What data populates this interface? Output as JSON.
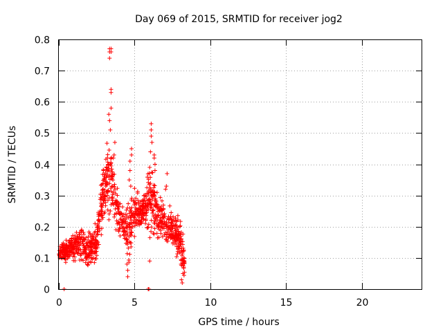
{
  "chart_data": {
    "type": "scatter",
    "title": "Day 069 of 2015, SRMTID for receiver jog2",
    "xlabel": "GPS time / hours",
    "ylabel": "SRMTID / TECUs",
    "xlim": [
      0,
      24
    ],
    "ylim": [
      0,
      0.8
    ],
    "xticks": [
      0,
      5,
      10,
      15,
      20
    ],
    "xtick_labels": [
      "0",
      "5",
      "10",
      "15",
      "20"
    ],
    "yticks": [
      0,
      0.1,
      0.2,
      0.3,
      0.4,
      0.5,
      0.6,
      0.7,
      0.8
    ],
    "ytick_labels": [
      "0",
      "0.1",
      "0.2",
      "0.3",
      "0.4",
      "0.5",
      "0.6",
      "0.7",
      "0.8"
    ],
    "grid": true,
    "marker": "+",
    "color": "#ff0000",
    "series": [
      {
        "name": "SRMTID",
        "x_range": [
          0,
          8.3
        ],
        "envelope": [
          {
            "t": 0.0,
            "lo": 0.08,
            "hi": 0.15
          },
          {
            "t": 0.5,
            "lo": 0.08,
            "hi": 0.17
          },
          {
            "t": 1.0,
            "lo": 0.07,
            "hi": 0.2
          },
          {
            "t": 1.5,
            "lo": 0.06,
            "hi": 0.22
          },
          {
            "t": 2.0,
            "lo": 0.06,
            "hi": 0.2
          },
          {
            "t": 2.5,
            "lo": 0.08,
            "hi": 0.22
          },
          {
            "t": 2.8,
            "lo": 0.15,
            "hi": 0.38
          },
          {
            "t": 3.2,
            "lo": 0.18,
            "hi": 0.55
          },
          {
            "t": 3.6,
            "lo": 0.18,
            "hi": 0.45
          },
          {
            "t": 4.0,
            "lo": 0.15,
            "hi": 0.3
          },
          {
            "t": 4.6,
            "lo": 0.06,
            "hi": 0.3
          },
          {
            "t": 5.0,
            "lo": 0.15,
            "hi": 0.35
          },
          {
            "t": 5.5,
            "lo": 0.18,
            "hi": 0.3
          },
          {
            "t": 6.0,
            "lo": 0.15,
            "hi": 0.45
          },
          {
            "t": 6.5,
            "lo": 0.12,
            "hi": 0.35
          },
          {
            "t": 7.0,
            "lo": 0.12,
            "hi": 0.3
          },
          {
            "t": 7.5,
            "lo": 0.12,
            "hi": 0.27
          },
          {
            "t": 8.0,
            "lo": 0.05,
            "hi": 0.27
          },
          {
            "t": 8.3,
            "lo": 0.03,
            "hi": 0.15
          }
        ],
        "extra_points": [
          [
            3.35,
            0.77
          ],
          [
            3.35,
            0.76
          ],
          [
            3.35,
            0.74
          ],
          [
            3.45,
            0.77
          ],
          [
            3.45,
            0.76
          ],
          [
            3.45,
            0.64
          ],
          [
            3.45,
            0.63
          ],
          [
            3.45,
            0.58
          ],
          [
            3.3,
            0.56
          ],
          [
            3.35,
            0.54
          ],
          [
            3.4,
            0.51
          ],
          [
            3.7,
            0.47
          ],
          [
            3.65,
            0.43
          ],
          [
            3.6,
            0.42
          ],
          [
            3.4,
            0.4
          ],
          [
            3.3,
            0.38
          ],
          [
            3.5,
            0.36
          ],
          [
            3.2,
            0.34
          ],
          [
            3.1,
            0.33
          ],
          [
            3.0,
            0.35
          ],
          [
            2.95,
            0.38
          ],
          [
            2.9,
            0.32
          ],
          [
            3.55,
            0.33
          ],
          [
            3.2,
            0.3
          ],
          [
            4.8,
            0.45
          ],
          [
            4.8,
            0.43
          ],
          [
            4.7,
            0.41
          ],
          [
            4.7,
            0.38
          ],
          [
            4.65,
            0.35
          ],
          [
            4.75,
            0.33
          ],
          [
            4.55,
            0.04
          ],
          [
            4.55,
            0.06
          ],
          [
            4.5,
            0.08
          ],
          [
            6.1,
            0.53
          ],
          [
            6.1,
            0.51
          ],
          [
            6.1,
            0.49
          ],
          [
            6.15,
            0.47
          ],
          [
            6.3,
            0.43
          ],
          [
            6.3,
            0.42
          ],
          [
            6.35,
            0.4
          ],
          [
            6.35,
            0.38
          ],
          [
            6.05,
            0.44
          ],
          [
            6.0,
            0.39
          ],
          [
            7.15,
            0.37
          ],
          [
            7.1,
            0.33
          ],
          [
            7.05,
            0.32
          ],
          [
            6.0,
            0.09
          ],
          [
            5.9,
            0.0
          ],
          [
            5.95,
            0.0
          ],
          [
            0.35,
            0.0
          ],
          [
            8.1,
            0.03
          ],
          [
            8.15,
            0.02
          ],
          [
            8.2,
            0.05
          ],
          [
            8.25,
            0.07
          ]
        ]
      }
    ]
  }
}
